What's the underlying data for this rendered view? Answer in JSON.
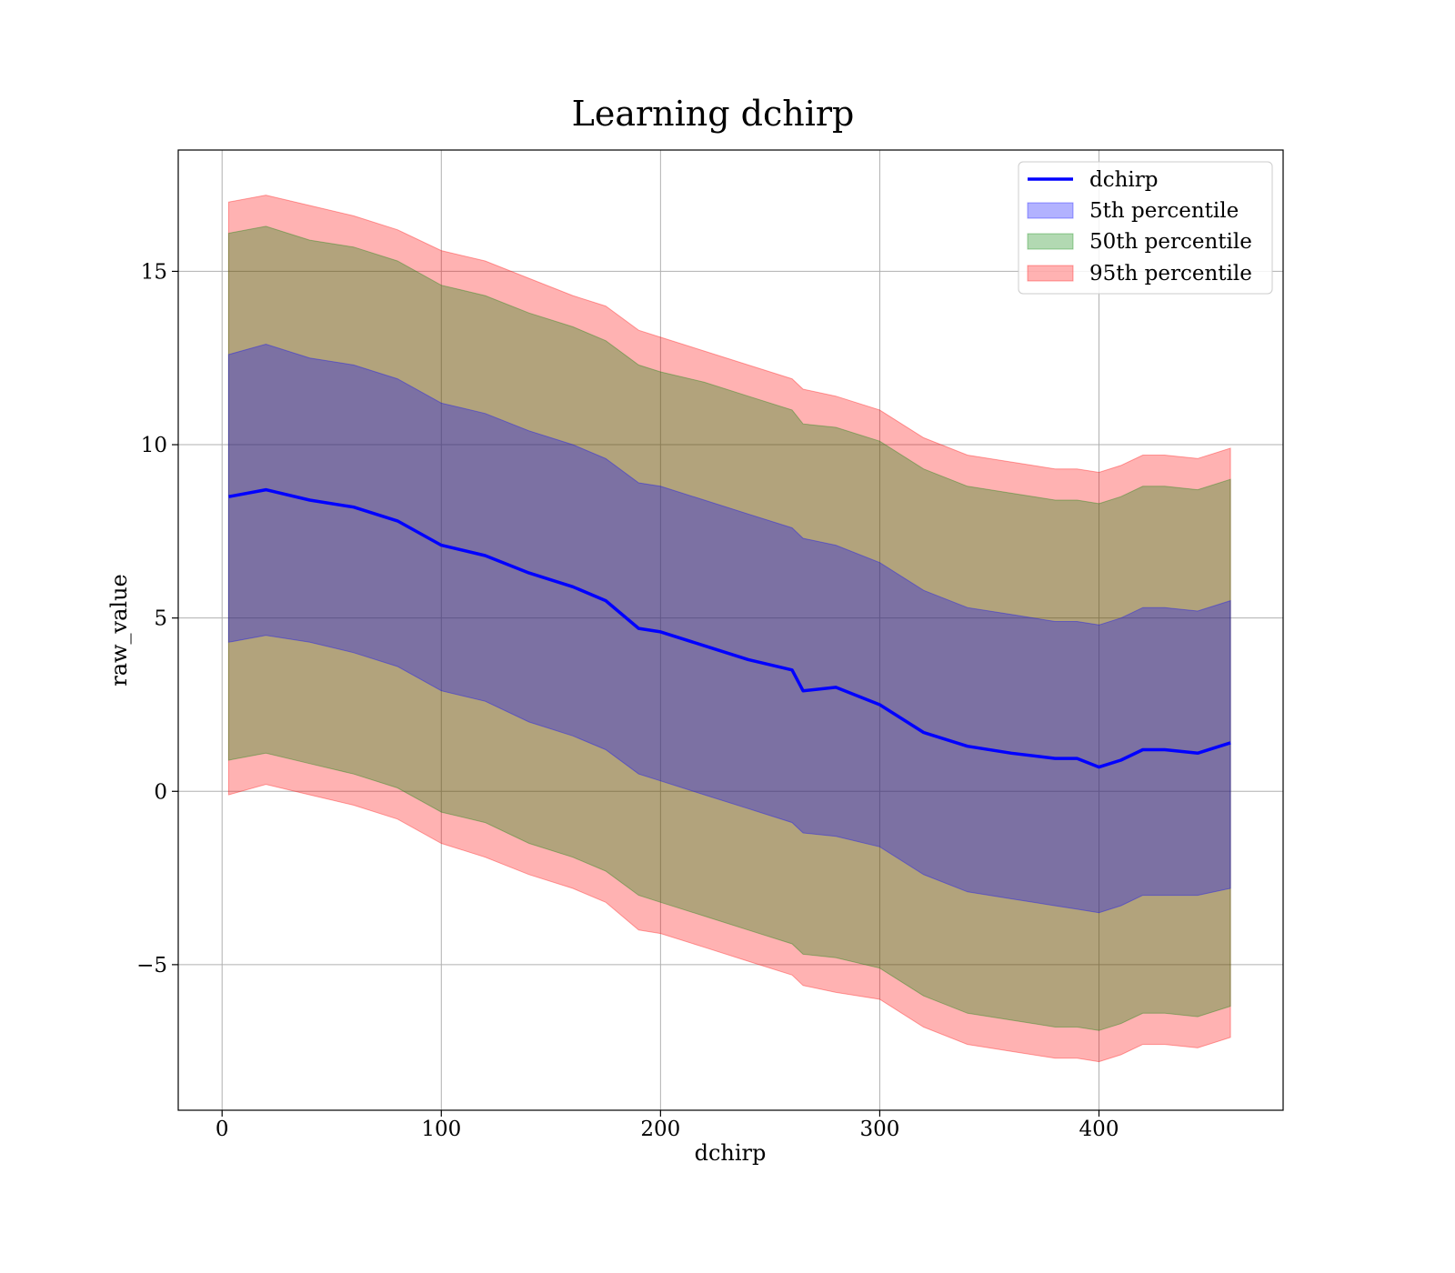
{
  "chart_data": {
    "type": "area",
    "title": "Learning dchirp",
    "xlabel": "dchirp",
    "ylabel": "raw_value",
    "xlim": [
      -20,
      484
    ],
    "ylim": [
      -9.2,
      18.5
    ],
    "xticks": [
      0,
      100,
      200,
      300,
      400
    ],
    "xtick_labels": [
      "0",
      "100",
      "200",
      "300",
      "400"
    ],
    "yticks": [
      -5,
      0,
      5,
      10,
      15
    ],
    "ytick_labels": [
      "−5",
      "0",
      "5",
      "10",
      "15"
    ],
    "grid": true,
    "legend_position": "top-right",
    "x": [
      3,
      20,
      40,
      60,
      80,
      100,
      120,
      140,
      160,
      175,
      190,
      200,
      220,
      240,
      260,
      265,
      280,
      300,
      320,
      340,
      360,
      380,
      390,
      400,
      410,
      420,
      430,
      445,
      460
    ],
    "series": [
      {
        "name": "dchirp",
        "kind": "line",
        "color": "#0000ff",
        "values": [
          8.5,
          8.7,
          8.4,
          8.2,
          7.8,
          7.1,
          6.8,
          6.3,
          5.9,
          5.5,
          4.7,
          4.6,
          4.2,
          3.8,
          3.5,
          2.9,
          3.0,
          2.5,
          1.7,
          1.3,
          1.1,
          0.95,
          0.95,
          0.7,
          0.9,
          1.2,
          1.2,
          1.1,
          1.4
        ]
      },
      {
        "name": "5th percentile",
        "kind": "band",
        "color": "#0000ff",
        "lower": [
          4.3,
          4.5,
          4.3,
          4.0,
          3.6,
          2.9,
          2.6,
          2.0,
          1.6,
          1.2,
          0.5,
          0.3,
          -0.1,
          -0.5,
          -0.9,
          -1.2,
          -1.3,
          -1.6,
          -2.4,
          -2.9,
          -3.1,
          -3.3,
          -3.4,
          -3.5,
          -3.3,
          -3.0,
          -3.0,
          -3.0,
          -2.8
        ],
        "upper": [
          12.6,
          12.9,
          12.5,
          12.3,
          11.9,
          11.2,
          10.9,
          10.4,
          10.0,
          9.6,
          8.9,
          8.8,
          8.4,
          8.0,
          7.6,
          7.3,
          7.1,
          6.6,
          5.8,
          5.3,
          5.1,
          4.9,
          4.9,
          4.8,
          5.0,
          5.3,
          5.3,
          5.2,
          5.5
        ]
      },
      {
        "name": "50th percentile",
        "kind": "band",
        "color": "#008000",
        "lower": [
          0.9,
          1.1,
          0.8,
          0.5,
          0.1,
          -0.6,
          -0.9,
          -1.5,
          -1.9,
          -2.3,
          -3.0,
          -3.2,
          -3.6,
          -4.0,
          -4.4,
          -4.7,
          -4.8,
          -5.1,
          -5.9,
          -6.4,
          -6.6,
          -6.8,
          -6.8,
          -6.9,
          -6.7,
          -6.4,
          -6.4,
          -6.5,
          -6.2
        ],
        "upper": [
          16.1,
          16.3,
          15.9,
          15.7,
          15.3,
          14.6,
          14.3,
          13.8,
          13.4,
          13.0,
          12.3,
          12.1,
          11.8,
          11.4,
          11.0,
          10.6,
          10.5,
          10.1,
          9.3,
          8.8,
          8.6,
          8.4,
          8.4,
          8.3,
          8.5,
          8.8,
          8.8,
          8.7,
          9.0
        ]
      },
      {
        "name": "95th percentile",
        "kind": "band",
        "color": "#ff0000",
        "lower": [
          -0.1,
          0.2,
          -0.1,
          -0.4,
          -0.8,
          -1.5,
          -1.9,
          -2.4,
          -2.8,
          -3.2,
          -4.0,
          -4.1,
          -4.5,
          -4.9,
          -5.3,
          -5.6,
          -5.8,
          -6.0,
          -6.8,
          -7.3,
          -7.5,
          -7.7,
          -7.7,
          -7.8,
          -7.6,
          -7.3,
          -7.3,
          -7.4,
          -7.1
        ],
        "upper": [
          17.0,
          17.2,
          16.9,
          16.6,
          16.2,
          15.6,
          15.3,
          14.8,
          14.3,
          14.0,
          13.3,
          13.1,
          12.7,
          12.3,
          11.9,
          11.6,
          11.4,
          11.0,
          10.2,
          9.7,
          9.5,
          9.3,
          9.3,
          9.2,
          9.4,
          9.7,
          9.7,
          9.6,
          9.9
        ]
      }
    ]
  }
}
